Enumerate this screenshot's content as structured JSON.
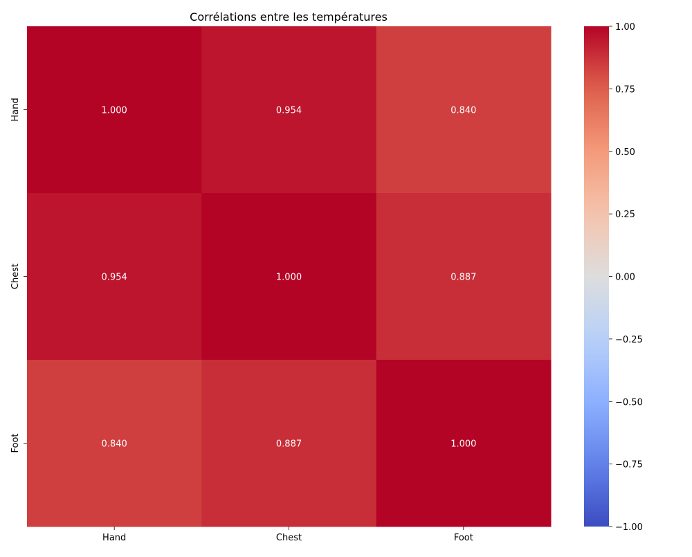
{
  "chart_data": {
    "type": "heatmap",
    "title": "Corrélations entre les températures",
    "x_labels": [
      "Hand",
      "Chest",
      "Foot"
    ],
    "y_labels": [
      "Hand",
      "Chest",
      "Foot"
    ],
    "values": [
      [
        1.0,
        0.954,
        0.84
      ],
      [
        0.954,
        1.0,
        0.887
      ],
      [
        0.84,
        0.887,
        1.0
      ]
    ],
    "cell_labels": [
      [
        "1.000",
        "0.954",
        "0.840"
      ],
      [
        "0.954",
        "1.000",
        "0.887"
      ],
      [
        "0.840",
        "0.887",
        "1.000"
      ]
    ],
    "colormap": "coolwarm",
    "vmin": -1.0,
    "vmax": 1.0,
    "colorbar_ticks": [
      1.0,
      0.75,
      0.5,
      0.25,
      0.0,
      -0.25,
      -0.5,
      -0.75,
      -1.0
    ],
    "colorbar_tick_labels": [
      "1.00",
      "0.75",
      "0.50",
      "0.25",
      "0.00",
      "−0.25",
      "−0.50",
      "−0.75",
      "−1.00"
    ],
    "colorbar_position": "right",
    "grid": false,
    "colors": {
      "low": "#3b4cc0",
      "mid": "#dddddd",
      "high": "#b40426"
    }
  }
}
